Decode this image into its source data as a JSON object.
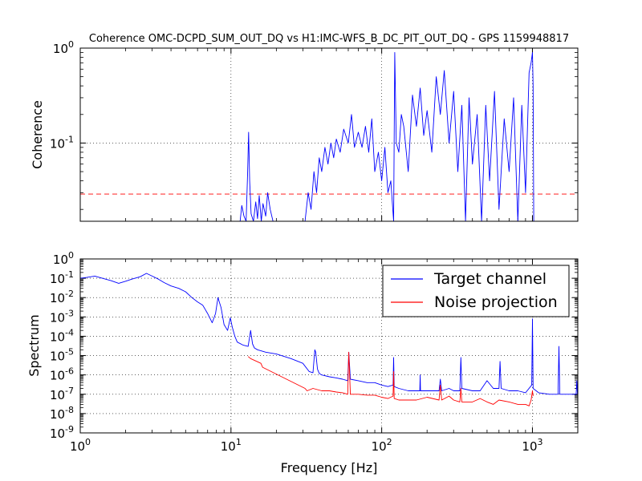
{
  "chart_data": [
    {
      "type": "line",
      "title": "Coherence OMC-DCPD_SUM_OUT_DQ vs H1:IMC-WFS_B_DC_PIT_OUT_DQ - GPS 1159948817",
      "xlabel": "",
      "ylabel": "Coherence",
      "xscale": "log",
      "yscale": "log",
      "xlim": [
        1,
        2000
      ],
      "ylim": [
        0.015,
        1
      ],
      "grid": true,
      "y_tick_labels": [
        {
          "base": "10",
          "exp": "0",
          "value": 1
        },
        {
          "base": "10",
          "exp": "-1",
          "value": 0.1
        }
      ],
      "threshold_line": {
        "y": 0.029,
        "color": "#ff0000",
        "style": "dashed"
      },
      "series": [
        {
          "color": "#0000ff",
          "x": [
            11.5,
            11.8,
            12.2,
            12.6,
            12.9,
            13.1,
            13.3,
            13.6,
            14.1,
            14.6,
            15.0,
            15.4,
            15.9,
            16.3,
            17.0,
            17.5,
            18.2,
            19.0,
            31.0,
            32.5,
            34.0,
            35.5,
            37.0,
            38.5,
            40.0,
            42.0,
            44.0,
            46.0,
            48.0,
            50.0,
            53.0,
            56.0,
            60.0,
            63.0,
            66.0,
            70.0,
            74.0,
            78.0,
            82.0,
            86.0,
            90.0,
            95.0,
            100.0,
            105.0,
            110.0,
            115.0,
            120.0,
            122.0,
            125.0,
            130.0,
            135.0,
            140.0,
            150.0,
            160.0,
            170.0,
            180.0,
            190.0,
            200.0,
            215.0,
            230.0,
            245.0,
            260.0,
            280.0,
            300.0,
            320.0,
            340.0,
            360.0,
            380.0,
            400.0,
            430.0,
            460.0,
            490.0,
            520.0,
            560.0,
            600.0,
            650.0,
            700.0,
            750.0,
            800.0,
            850.0,
            900.0,
            950.0,
            980.0,
            1000.0,
            1010.0,
            1020.0
          ],
          "y": [
            0.015,
            0.022,
            0.017,
            0.015,
            0.05,
            0.13,
            0.04,
            0.018,
            0.015,
            0.024,
            0.016,
            0.028,
            0.015,
            0.023,
            0.017,
            0.03,
            0.02,
            0.015,
            0.015,
            0.03,
            0.02,
            0.05,
            0.03,
            0.07,
            0.05,
            0.09,
            0.06,
            0.1,
            0.07,
            0.11,
            0.08,
            0.14,
            0.1,
            0.2,
            0.09,
            0.13,
            0.09,
            0.15,
            0.08,
            0.18,
            0.05,
            0.08,
            0.04,
            0.09,
            0.03,
            0.04,
            0.015,
            0.9,
            0.1,
            0.08,
            0.2,
            0.15,
            0.05,
            0.32,
            0.15,
            0.38,
            0.12,
            0.22,
            0.08,
            0.5,
            0.2,
            0.58,
            0.1,
            0.35,
            0.05,
            0.25,
            0.015,
            0.3,
            0.06,
            0.2,
            0.015,
            0.25,
            0.04,
            0.35,
            0.02,
            0.18,
            0.05,
            0.3,
            0.015,
            0.25,
            0.03,
            0.55,
            0.7,
            0.9,
            0.4,
            0.015
          ]
        }
      ]
    },
    {
      "type": "line",
      "title": "",
      "xlabel": "Frequency [Hz]",
      "ylabel": "Spectrum",
      "xscale": "log",
      "yscale": "log",
      "xlim": [
        1,
        2000
      ],
      "ylim": [
        1e-09,
        1
      ],
      "grid": true,
      "legend": "top-right",
      "x_tick_labels": [
        {
          "base": "10",
          "exp": "0",
          "value": 1
        },
        {
          "base": "10",
          "exp": "1",
          "value": 10
        },
        {
          "base": "10",
          "exp": "2",
          "value": 100
        },
        {
          "base": "10",
          "exp": "3",
          "value": 1000
        }
      ],
      "y_tick_labels": [
        {
          "base": "10",
          "exp": "0",
          "value": 1
        },
        {
          "base": "10",
          "exp": "-1",
          "value": 0.1
        },
        {
          "base": "10",
          "exp": "-2",
          "value": 0.01
        },
        {
          "base": "10",
          "exp": "-3",
          "value": 0.001
        },
        {
          "base": "10",
          "exp": "-4",
          "value": 0.0001
        },
        {
          "base": "10",
          "exp": "-5",
          "value": 1e-05
        },
        {
          "base": "10",
          "exp": "-6",
          "value": 1e-06
        },
        {
          "base": "10",
          "exp": "-7",
          "value": 1e-07
        },
        {
          "base": "10",
          "exp": "-8",
          "value": 1e-08
        },
        {
          "base": "10",
          "exp": "-9",
          "value": 1e-09
        }
      ],
      "series": [
        {
          "name": "Target channel",
          "color": "#0000ff",
          "x": [
            1.0,
            1.1,
            1.25,
            1.4,
            1.6,
            1.8,
            2.0,
            2.2,
            2.5,
            2.75,
            3.0,
            3.3,
            3.6,
            4.0,
            4.5,
            5.0,
            5.5,
            6.0,
            6.5,
            7.0,
            7.5,
            7.9,
            8.2,
            8.6,
            9.0,
            9.5,
            9.9,
            10.2,
            10.6,
            11.0,
            12.0,
            13.0,
            13.5,
            13.9,
            14.3,
            15.0,
            17.0,
            20.0,
            25.0,
            30.0,
            33.0,
            35.0,
            36.0,
            36.5,
            37.5,
            38.5,
            40.0,
            45.0,
            50.0,
            55.0,
            59.5,
            60.5,
            62.0,
            70.0,
            80.0,
            90.0,
            100.0,
            110.0,
            119.0,
            120.0,
            121.0,
            130.0,
            150.0,
            170.0,
            179.0,
            180.0,
            181.0,
            200.0,
            240.0,
            245.0,
            250.0,
            280.0,
            300.0,
            330.0,
            335.0,
            340.0,
            400.0,
            450.0,
            500.0,
            550.0,
            600.0,
            610.0,
            620.0,
            700.0,
            800.0,
            900.0,
            990.0,
            1000.0,
            1010.0,
            1100.0,
            1300.0,
            1480.0,
            1500.0,
            1520.0,
            1700.0,
            1950.0,
            1970.0,
            1990.0,
            2000.0
          ],
          "y": [
            0.1,
            0.11,
            0.13,
            0.1,
            0.075,
            0.055,
            0.07,
            0.09,
            0.12,
            0.18,
            0.13,
            0.09,
            0.06,
            0.04,
            0.03,
            0.02,
            0.01,
            0.006,
            0.004,
            0.0015,
            0.0005,
            0.0015,
            0.01,
            0.003,
            0.0004,
            0.0002,
            0.0009,
            0.0003,
            0.0001,
            5e-05,
            3.5e-05,
            3e-05,
            0.0002,
            4e-05,
            2.5e-05,
            2e-05,
            1.5e-05,
            1.2e-05,
            7e-06,
            4e-06,
            1.5e-06,
            1.3e-06,
            2e-05,
            1.5e-05,
            2e-06,
            1.2e-06,
            1e-06,
            8e-07,
            7e-07,
            6e-07,
            5e-07,
            1.5e-05,
            6e-07,
            5e-07,
            4e-07,
            4e-07,
            3e-07,
            2.5e-07,
            3e-07,
            8e-06,
            2.5e-07,
            2e-07,
            1.5e-07,
            1.5e-07,
            1.5e-07,
            1e-06,
            1.5e-07,
            1.5e-07,
            1.5e-07,
            6e-07,
            1.5e-07,
            2e-07,
            1.5e-07,
            1.5e-07,
            8e-06,
            2e-07,
            1.5e-07,
            1.5e-07,
            5e-07,
            2e-07,
            2e-07,
            5e-06,
            2e-07,
            1.5e-07,
            1.5e-07,
            1.2e-07,
            3e-07,
            0.0008,
            2e-07,
            1.2e-07,
            1e-07,
            1e-07,
            3e-05,
            1e-07,
            1e-07,
            1e-07,
            5e-07,
            1e-07,
            1e-07
          ]
        },
        {
          "name": "Noise projection",
          "color": "#ff0000",
          "x": [
            13.0,
            13.5,
            15.8,
            16.2,
            31.0,
            32.0,
            35.0,
            40.0,
            45.0,
            50.0,
            55.0,
            59.5,
            60.5,
            62.0,
            70.0,
            80.0,
            90.0,
            100.0,
            110.0,
            119.0,
            120.0,
            121.0,
            130.0,
            150.0,
            170.0,
            200.0,
            240.0,
            245.0,
            250.0,
            280.0,
            300.0,
            330.0,
            335.0,
            340.0,
            400.0,
            450.0,
            500.0,
            550.0,
            600.0,
            700.0,
            800.0,
            900.0,
            950.0,
            980.0,
            1000.0,
            1010.0
          ],
          "y": [
            9e-06,
            7e-06,
            4e-06,
            2.5e-06,
            2e-07,
            1.5e-07,
            2e-07,
            1.5e-07,
            1.5e-07,
            1.3e-07,
            1.2e-07,
            1e-07,
            1.5e-05,
            1e-07,
            1e-07,
            9e-08,
            9e-08,
            7e-08,
            6e-08,
            8e-08,
            1.5e-06,
            6e-08,
            5e-08,
            5e-08,
            5e-08,
            7e-08,
            5e-08,
            3e-07,
            5e-08,
            8e-08,
            5e-08,
            4e-08,
            2e-07,
            4e-08,
            4e-08,
            6e-08,
            4e-08,
            3e-08,
            5e-08,
            4e-08,
            3e-08,
            3e-08,
            2.5e-08,
            5e-08,
            1.5e-07,
            8e-08
          ]
        }
      ]
    }
  ]
}
